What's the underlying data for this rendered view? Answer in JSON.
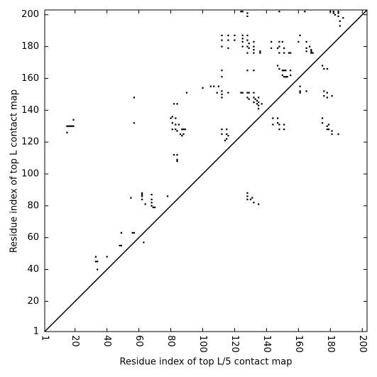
{
  "chart_data": {
    "type": "scatter",
    "x_label": "Residue index of top L/5 contact map",
    "y_label": "Residue index of top L contact map",
    "color": "#000000",
    "xlim": [
      1,
      203
    ],
    "ylim": [
      1,
      203
    ],
    "xticks": [
      1,
      20,
      40,
      60,
      80,
      100,
      120,
      140,
      160,
      180,
      200
    ],
    "yticks": [
      1,
      20,
      40,
      60,
      80,
      100,
      120,
      140,
      160,
      180,
      200
    ],
    "x": [
      15,
      16,
      17,
      18,
      19,
      15,
      19,
      33,
      33,
      34,
      34,
      40,
      49,
      48,
      49,
      55,
      56,
      57,
      57,
      57,
      62,
      62,
      62,
      62,
      63,
      64,
      68,
      68,
      68,
      68,
      69,
      70,
      78,
      80,
      81,
      81,
      81,
      82,
      83,
      83,
      83,
      84,
      84,
      84,
      84,
      82,
      85,
      86,
      87,
      87,
      88,
      88,
      89,
      90,
      84,
      100,
      105,
      107,
      109,
      110,
      112,
      112,
      112,
      112,
      112,
      116,
      115,
      115,
      115,
      114,
      112,
      112,
      116,
      112,
      112,
      112,
      116,
      116,
      116,
      120,
      120,
      124,
      125,
      125,
      125,
      125,
      125,
      128,
      128,
      129,
      128,
      129,
      128,
      132,
      132,
      132,
      132,
      136,
      136,
      128,
      128,
      124,
      125,
      128,
      129,
      128,
      129,
      132,
      132,
      132,
      133,
      134,
      135,
      135,
      134,
      135,
      135,
      137,
      132,
      128,
      128,
      128,
      128,
      130,
      131,
      132,
      135,
      143,
      143,
      144,
      144,
      147,
      147,
      148,
      148,
      148,
      148,
      147,
      147,
      148,
      148,
      148,
      150,
      151,
      151,
      150,
      151,
      152,
      150,
      151,
      152,
      151,
      151,
      154,
      155,
      155,
      155,
      153,
      161,
      160,
      161,
      161,
      161,
      164,
      165,
      165,
      165,
      165,
      167,
      168,
      168,
      169,
      168,
      175,
      176,
      176,
      176,
      175,
      175,
      178,
      178,
      178,
      178,
      178,
      179,
      179,
      181,
      181,
      181,
      180,
      182,
      183,
      182,
      185,
      185,
      185,
      186,
      186,
      188,
      185
    ],
    "values": [
      130,
      130,
      130,
      130,
      130,
      126,
      134,
      48,
      45,
      45,
      40,
      48,
      63,
      55,
      55,
      85,
      63,
      63,
      148,
      132,
      88,
      87,
      86,
      84,
      57,
      81,
      87,
      84,
      82,
      80,
      79,
      79,
      86,
      135,
      136,
      132,
      128,
      144,
      135,
      131,
      128,
      127,
      112,
      109,
      108,
      112,
      131,
      125,
      128,
      124,
      128,
      125,
      128,
      151,
      144,
      154,
      155,
      155,
      151,
      155,
      152,
      150,
      148,
      161,
      165,
      151,
      128,
      125,
      122,
      121,
      128,
      125,
      124,
      187,
      184,
      180,
      187,
      184,
      179,
      187,
      184,
      202,
      202,
      187,
      185,
      183,
      180,
      187,
      184,
      182,
      180,
      179,
      176,
      183,
      180,
      178,
      176,
      177,
      176,
      199,
      201,
      151,
      151,
      151,
      151,
      148,
      147,
      151,
      148,
      145,
      147,
      146,
      148,
      145,
      144,
      143,
      141,
      144,
      165,
      165,
      88,
      86,
      84,
      84,
      85,
      82,
      81,
      183,
      179,
      135,
      131,
      179,
      168,
      166,
      183,
      180,
      176,
      135,
      132,
      131,
      128,
      202,
      183,
      179,
      176,
      165,
      165,
      165,
      162,
      161,
      161,
      131,
      128,
      176,
      176,
      165,
      162,
      161,
      187,
      183,
      155,
      152,
      151,
      202,
      183,
      179,
      177,
      152,
      180,
      178,
      177,
      176,
      176,
      168,
      166,
      152,
      149,
      135,
      132,
      151,
      148,
      166,
      130,
      128,
      128,
      131,
      149,
      125,
      127,
      202,
      202,
      200,
      201,
      202,
      201,
      199,
      196,
      193,
      198,
      125
    ]
  }
}
